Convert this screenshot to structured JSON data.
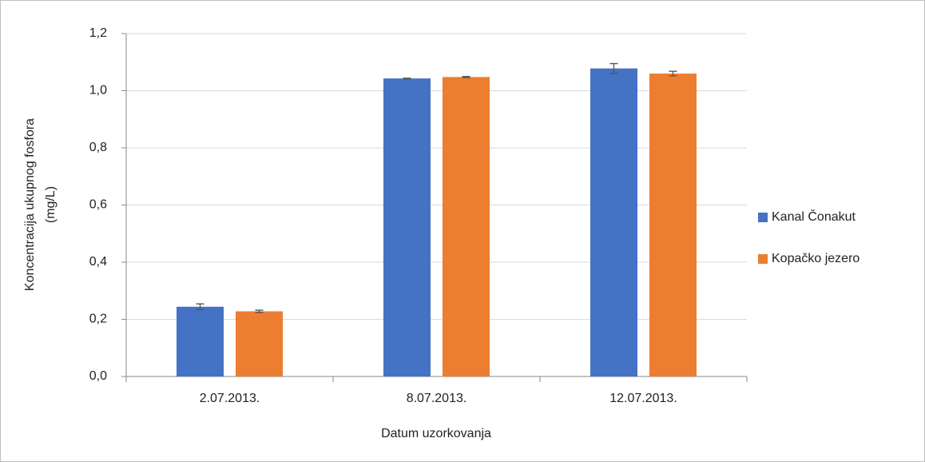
{
  "chart_data": {
    "type": "bar",
    "xlabel": "Datum uzorkovanja",
    "ylabel": [
      "Koncentracija ukupnog fosfora",
      "(mg/L)"
    ],
    "categories": [
      "2.07.2013.",
      "8.07.2013.",
      "12.07.2013."
    ],
    "series": [
      {
        "name": "Kanal Čonakut",
        "color": "#4472c4",
        "values": [
          0.244,
          1.043,
          1.078
        ],
        "errors": [
          0.01,
          0.001,
          0.017
        ]
      },
      {
        "name": "Kopačko jezero",
        "color": "#ed7d31",
        "values": [
          0.228,
          1.048,
          1.06
        ],
        "errors": [
          0.004,
          0.002,
          0.008
        ]
      }
    ],
    "ylim": [
      0,
      1.2
    ],
    "yticks": [
      {
        "value": 0,
        "label": "0,0"
      },
      {
        "value": 0.2,
        "label": "0,2"
      },
      {
        "value": 0.4,
        "label": "0,4"
      },
      {
        "value": 0.6,
        "label": "0,6"
      },
      {
        "value": 0.8,
        "label": "0,8"
      },
      {
        "value": 1.0,
        "label": "1,0"
      },
      {
        "value": 1.2,
        "label": "1,2"
      }
    ],
    "grid": true,
    "legend": "right"
  }
}
